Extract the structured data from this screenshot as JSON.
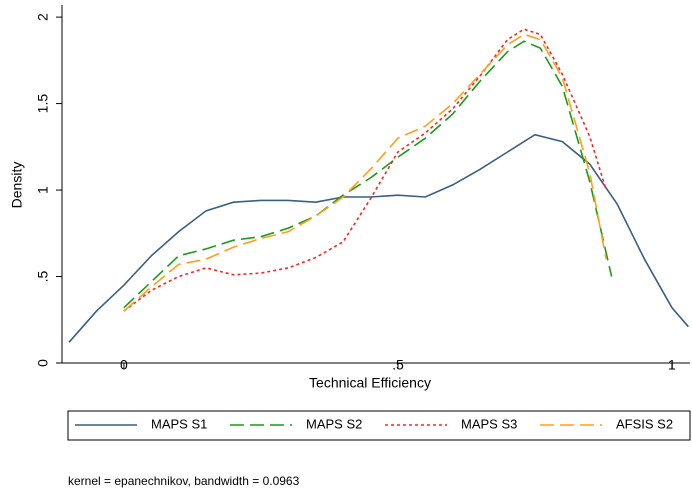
{
  "chart_data": {
    "type": "line",
    "xlabel": "Technical Efficiency",
    "ylabel": "Density",
    "note": "kernel = epanechnikov, bandwidth = 0.0963",
    "xlim": [
      -0.113,
      1.033
    ],
    "xticks": [
      0,
      {
        "value": 0.5,
        "label": ".5"
      },
      1
    ],
    "ylim": [
      0,
      2.07
    ],
    "yticks": [
      0,
      {
        "value": 0.5,
        "label": ".5"
      },
      1,
      1.5,
      2
    ],
    "grid": false,
    "legend": "bottom",
    "series": [
      {
        "name": "MAPS S1",
        "color": "#3b5f7f",
        "dash": "solid",
        "x": [
          -0.1,
          -0.05,
          0,
          0.05,
          0.1,
          0.15,
          0.2,
          0.25,
          0.3,
          0.35,
          0.4,
          0.45,
          0.5,
          0.55,
          0.6,
          0.65,
          0.7,
          0.75,
          0.8,
          0.85,
          0.9,
          0.95,
          1.0,
          1.03
        ],
        "values": [
          0.12,
          0.3,
          0.45,
          0.62,
          0.76,
          0.88,
          0.93,
          0.94,
          0.94,
          0.93,
          0.96,
          0.96,
          0.97,
          0.96,
          1.03,
          1.12,
          1.22,
          1.32,
          1.28,
          1.15,
          0.92,
          0.6,
          0.32,
          0.21
        ]
      },
      {
        "name": "MAPS S2",
        "color": "#1a9a1a",
        "dash": "long",
        "x": [
          0,
          0.05,
          0.1,
          0.15,
          0.2,
          0.25,
          0.3,
          0.35,
          0.4,
          0.45,
          0.5,
          0.55,
          0.6,
          0.65,
          0.7,
          0.73,
          0.76,
          0.8,
          0.85,
          0.89
        ],
        "values": [
          0.32,
          0.47,
          0.62,
          0.66,
          0.71,
          0.73,
          0.78,
          0.85,
          0.97,
          1.07,
          1.19,
          1.3,
          1.44,
          1.63,
          1.8,
          1.86,
          1.82,
          1.6,
          1.05,
          0.5
        ]
      },
      {
        "name": "MAPS S3",
        "color": "#ff2020",
        "dash": "dot",
        "x": [
          0,
          0.05,
          0.1,
          0.15,
          0.2,
          0.25,
          0.3,
          0.35,
          0.4,
          0.45,
          0.5,
          0.55,
          0.6,
          0.65,
          0.7,
          0.73,
          0.76,
          0.8,
          0.85,
          0.88
        ],
        "values": [
          0.3,
          0.42,
          0.5,
          0.55,
          0.51,
          0.52,
          0.55,
          0.61,
          0.7,
          0.95,
          1.22,
          1.33,
          1.47,
          1.66,
          1.87,
          1.93,
          1.9,
          1.67,
          1.31,
          1.0
        ]
      },
      {
        "name": "AFSIS S2",
        "color": "#ff9f1a",
        "dash": "long",
        "x": [
          0,
          0.05,
          0.1,
          0.15,
          0.2,
          0.25,
          0.3,
          0.35,
          0.4,
          0.45,
          0.5,
          0.55,
          0.6,
          0.65,
          0.7,
          0.73,
          0.76,
          0.8,
          0.85,
          0.88
        ],
        "values": [
          0.3,
          0.44,
          0.57,
          0.6,
          0.67,
          0.72,
          0.76,
          0.85,
          0.96,
          1.12,
          1.3,
          1.37,
          1.5,
          1.67,
          1.84,
          1.9,
          1.87,
          1.65,
          1.1,
          0.6
        ]
      }
    ]
  }
}
